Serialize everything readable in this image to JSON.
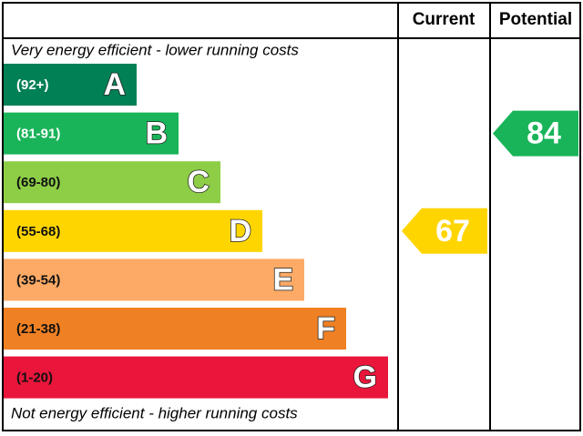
{
  "header": {
    "current": "Current",
    "potential": "Potential"
  },
  "top_note": "Very energy efficient - lower running costs",
  "bottom_note": "Not energy efficient - higher running costs",
  "bands": [
    {
      "range": "(92+)",
      "letter": "A",
      "color": "#008054"
    },
    {
      "range": "(81-91)",
      "letter": "B",
      "color": "#19b459"
    },
    {
      "range": "(69-80)",
      "letter": "C",
      "color": "#8dce46"
    },
    {
      "range": "(55-68)",
      "letter": "D",
      "color": "#ffd500"
    },
    {
      "range": "(39-54)",
      "letter": "E",
      "color": "#fcaa65"
    },
    {
      "range": "(21-38)",
      "letter": "F",
      "color": "#ef8023"
    },
    {
      "range": "(1-20)",
      "letter": "G",
      "color": "#e9153b"
    }
  ],
  "current": 67,
  "potential": 84
}
